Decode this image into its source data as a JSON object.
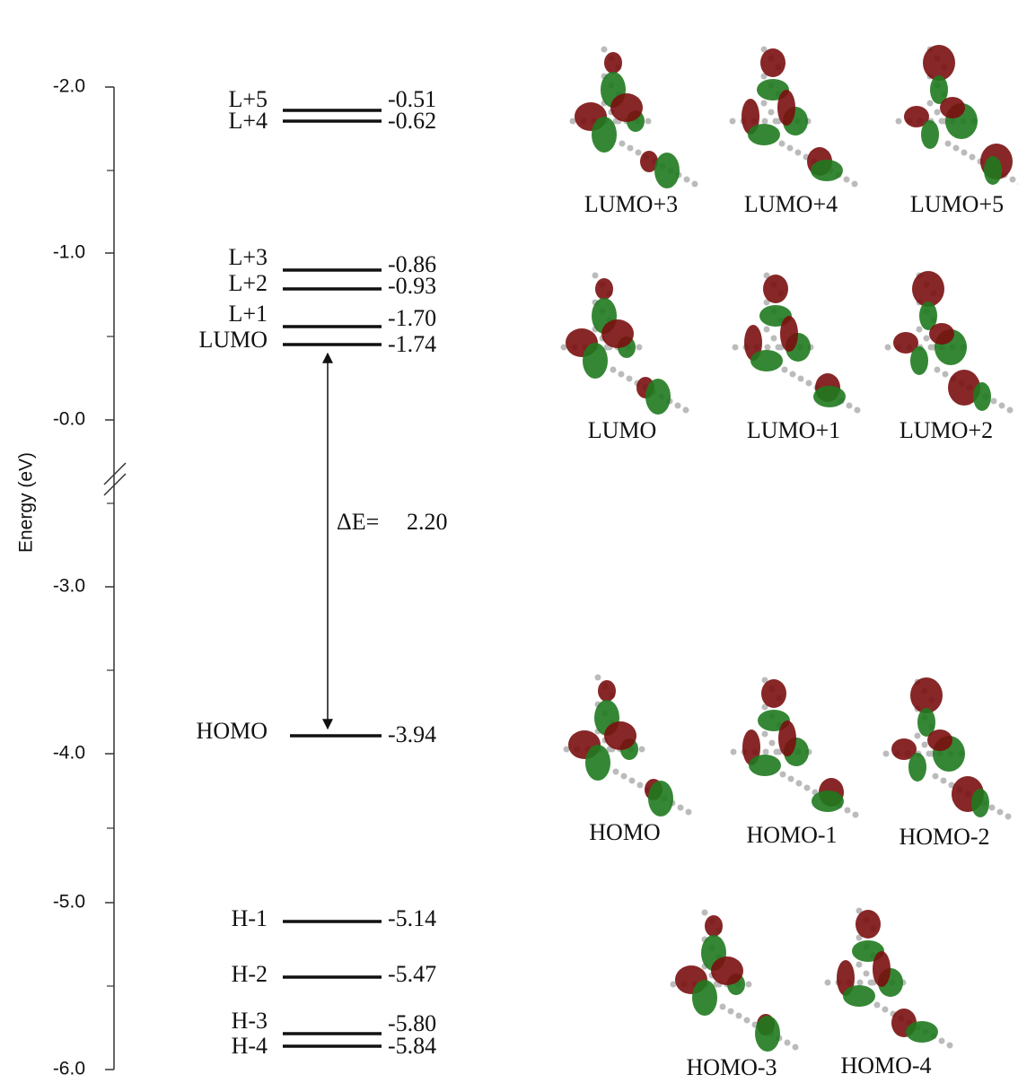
{
  "axis": {
    "title": "Energy (eV)",
    "ticks": [
      "-2.0",
      "-1.0",
      "-0.0",
      "-3.0",
      "-4.0",
      "-5.0",
      "-6.0"
    ]
  },
  "levels": [
    {
      "label": "L+5",
      "value": "-0.51"
    },
    {
      "label": "L+4",
      "value": "-0.62"
    },
    {
      "label": "L+3",
      "value": "-0.86"
    },
    {
      "label": "L+2",
      "value": "-0.93"
    },
    {
      "label": "L+1",
      "value": "-1.70"
    },
    {
      "label": "LUMO",
      "value": "-1.74"
    },
    {
      "label": "HOMO",
      "value": "-3.94"
    },
    {
      "label": "H-1",
      "value": "-5.14"
    },
    {
      "label": "H-2",
      "value": "-5.47"
    },
    {
      "label": "H-3",
      "value": "-5.80"
    },
    {
      "label": "H-4",
      "value": "-5.84"
    }
  ],
  "gap": {
    "label": "ΔE=",
    "value": "2.20"
  },
  "orbitals": [
    "LUMO+3",
    "LUMO+4",
    "LUMO+5",
    "LUMO",
    "LUMO+1",
    "LUMO+2",
    "HOMO",
    "HOMO-1",
    "HOMO-2",
    "HOMO-3",
    "HOMO-4"
  ]
}
